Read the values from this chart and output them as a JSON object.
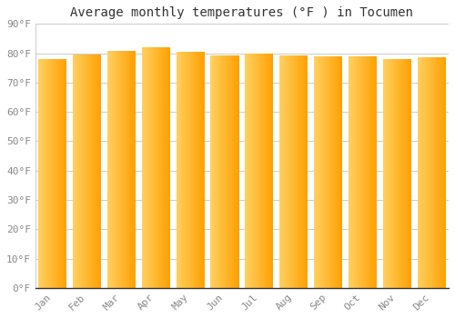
{
  "title": "Average monthly temperatures (°F ) in Tocumen",
  "months": [
    "Jan",
    "Feb",
    "Mar",
    "Apr",
    "May",
    "Jun",
    "Jul",
    "Aug",
    "Sep",
    "Oct",
    "Nov",
    "Dec"
  ],
  "values": [
    78.1,
    79.5,
    80.8,
    82.0,
    80.6,
    79.2,
    79.9,
    79.2,
    79.0,
    78.8,
    78.1,
    78.6
  ],
  "bar_color_left": "#FFD060",
  "bar_color_right": "#FFA000",
  "background_color": "#FFFFFF",
  "grid_color": "#CCCCCC",
  "yticks": [
    0,
    10,
    20,
    30,
    40,
    50,
    60,
    70,
    80,
    90
  ],
  "ylim": [
    0,
    90
  ],
  "title_fontsize": 10,
  "tick_fontsize": 8,
  "text_color": "#888888",
  "title_color": "#333333"
}
